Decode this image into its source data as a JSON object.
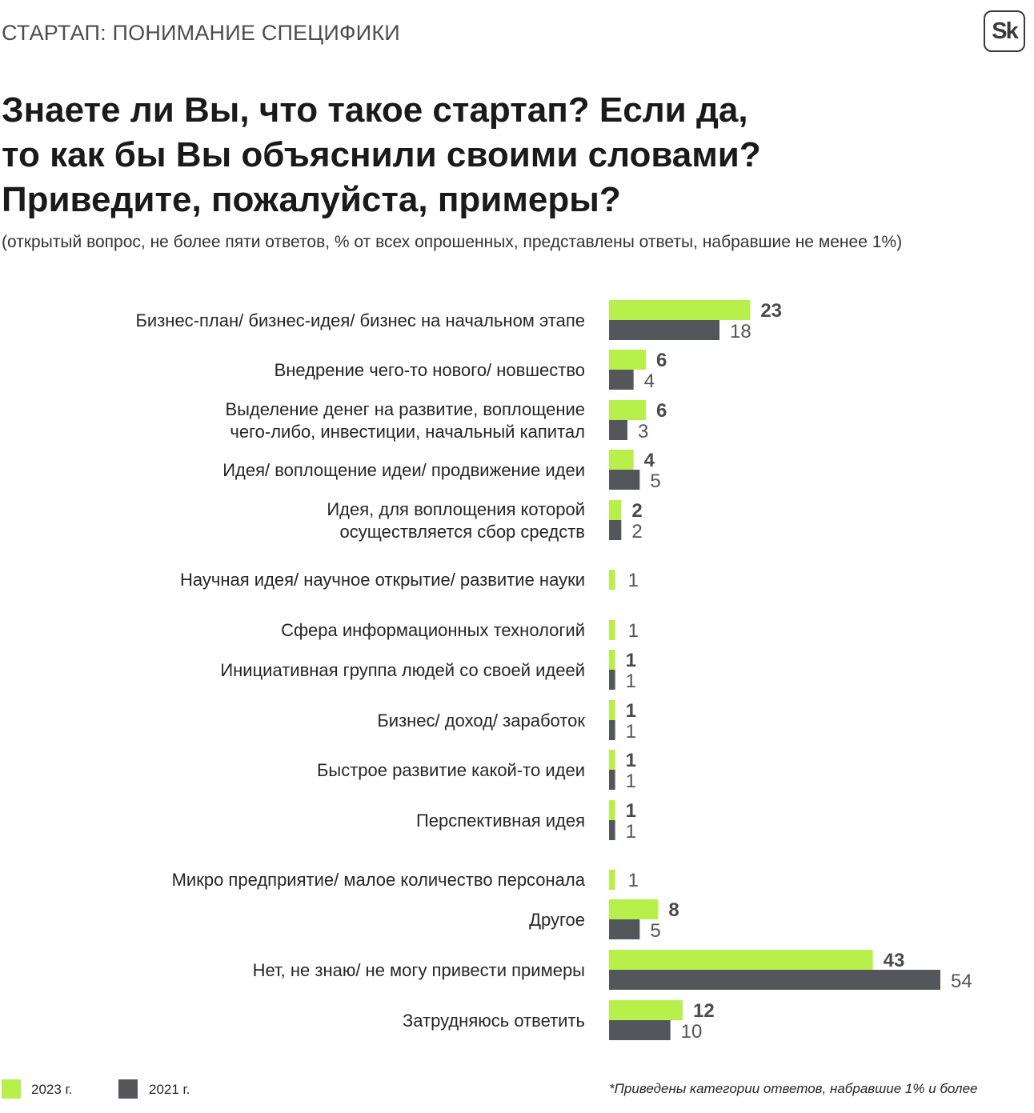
{
  "header": {
    "section_title": "СТАРТАП: ПОНИМАНИЕ СПЕЦИФИКИ",
    "logo_text": "Sk"
  },
  "question": {
    "lines": [
      "Знаете ли Вы, что такое стартап? Если да,",
      "то как бы Вы объяснили своими словами?",
      "Приведите, пожалуйста, примеры?"
    ],
    "note": "(открытый вопрос, не более пяти ответов, % от всех опрошенных, представлены ответы, набравшие не менее 1%)"
  },
  "legend": {
    "items": [
      {
        "label": "2023 г.",
        "color": "#b7f04a"
      },
      {
        "label": "2021 г.",
        "color": "#53575b"
      }
    ]
  },
  "footnote": "*Приведены категории ответов, набравшие 1% и более",
  "chart_data": {
    "type": "bar",
    "orientation": "horizontal",
    "categories": [
      [
        "Бизнес-план/ бизнес-идея/ бизнес на начальном этапе"
      ],
      [
        "Внедрение чего-то нового/ новшество"
      ],
      [
        "Выделение денег на развитие, воплощение",
        "чего-либо, инвестиции, начальный капитал"
      ],
      [
        "Идея/ воплощение идеи/ продвижение идеи"
      ],
      [
        "Идея, для воплощения которой",
        "осуществляется сбор средств"
      ],
      [
        "Научная идея/ научное открытие/ развитие науки"
      ],
      [
        "Сфера информационных технологий"
      ],
      [
        "Инициативная группа людей со своей идеей"
      ],
      [
        "Бизнес/ доход/ заработок"
      ],
      [
        "Быстрое развитие какой-то идеи"
      ],
      [
        "Перспективная идея"
      ],
      [
        "Микро предприятие/ малое количество персонала"
      ],
      [
        "Другое"
      ],
      [
        "Нет, не знаю/ не могу привести примеры"
      ],
      [
        "Затрудняюсь ответить"
      ]
    ],
    "series": [
      {
        "name": "2023 г.",
        "color": "#b7f04a",
        "values": [
          23,
          6,
          6,
          4,
          2,
          null,
          null,
          1,
          1,
          1,
          1,
          null,
          8,
          43,
          12
        ]
      },
      {
        "name": "2021 г.",
        "color": "#53575b",
        "values": [
          18,
          4,
          3,
          5,
          2,
          null,
          null,
          1,
          1,
          1,
          1,
          null,
          5,
          54,
          10
        ]
      }
    ],
    "single_values": [
      null,
      null,
      null,
      null,
      null,
      1,
      1,
      null,
      null,
      null,
      null,
      1,
      null,
      null,
      null
    ],
    "single_series": "2023 г.",
    "xlim": [
      0,
      54
    ]
  }
}
